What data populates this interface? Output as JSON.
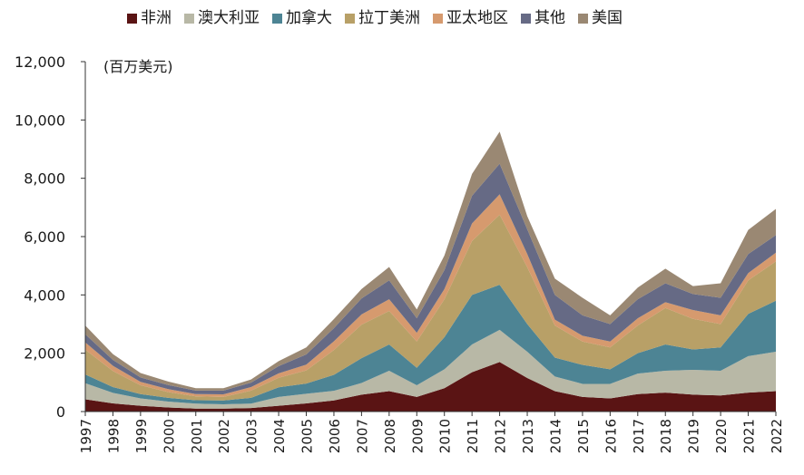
{
  "chart_data": {
    "type": "area",
    "stacked": true,
    "title": "",
    "ylabel": "(百万美元)",
    "xlabel": "",
    "ylim": [
      0,
      12000
    ],
    "yticks": [
      0,
      2000,
      4000,
      6000,
      8000,
      10000,
      12000
    ],
    "ytick_labels": [
      "0",
      "2,000",
      "4,000",
      "6,000",
      "8,000",
      "10,000",
      "12,000"
    ],
    "categories": [
      "1997",
      "1998",
      "1999",
      "2000",
      "2001",
      "2002",
      "2003",
      "2004",
      "2005",
      "2006",
      "2007",
      "2008",
      "2009",
      "2010",
      "2011",
      "2012",
      "2013",
      "2014",
      "2015",
      "2016",
      "2017",
      "2018",
      "2019",
      "2020",
      "2021",
      "2022"
    ],
    "legend_position": "top",
    "series": [
      {
        "name": "非洲",
        "color": "#5a1414",
        "values": [
          420,
          280,
          200,
          140,
          100,
          100,
          120,
          200,
          280,
          380,
          580,
          700,
          500,
          800,
          1350,
          1700,
          1150,
          700,
          500,
          450,
          600,
          650,
          580,
          550,
          650,
          700
        ]
      },
      {
        "name": "澳大利亚",
        "color": "#b8b8a6",
        "values": [
          550,
          360,
          250,
          200,
          170,
          150,
          150,
          300,
          330,
          330,
          400,
          700,
          400,
          650,
          950,
          1100,
          900,
          500,
          450,
          500,
          700,
          750,
          850,
          850,
          1250,
          1350
        ]
      },
      {
        "name": "加拿大",
        "color": "#4d8494",
        "values": [
          300,
          200,
          150,
          130,
          120,
          130,
          200,
          330,
          350,
          550,
          850,
          900,
          600,
          1100,
          1700,
          1550,
          950,
          650,
          650,
          500,
          700,
          900,
          700,
          800,
          1450,
          1750
        ]
      },
      {
        "name": "拉丁美洲",
        "color": "#b8a067",
        "values": [
          850,
          550,
          300,
          200,
          130,
          120,
          250,
          330,
          450,
          850,
          1150,
          1150,
          900,
          1300,
          1850,
          2400,
          1950,
          1100,
          800,
          750,
          950,
          1250,
          1050,
          800,
          1150,
          1350
        ]
      },
      {
        "name": "亚太地区",
        "color": "#d69a6e",
        "values": [
          250,
          180,
          120,
          100,
          80,
          90,
          120,
          150,
          200,
          300,
          350,
          400,
          300,
          350,
          600,
          700,
          450,
          200,
          200,
          200,
          250,
          200,
          300,
          300,
          250,
          300
        ]
      },
      {
        "name": "其他",
        "color": "#666a85",
        "values": [
          280,
          200,
          150,
          140,
          120,
          130,
          150,
          250,
          350,
          450,
          550,
          650,
          500,
          650,
          950,
          1050,
          850,
          850,
          700,
          600,
          650,
          650,
          550,
          600,
          650,
          600
        ]
      },
      {
        "name": "美国",
        "color": "#9a8873",
        "values": [
          300,
          200,
          150,
          120,
          80,
          80,
          110,
          170,
          240,
          310,
          320,
          460,
          300,
          500,
          750,
          1100,
          450,
          560,
          600,
          300,
          400,
          500,
          270,
          500,
          830,
          900
        ]
      }
    ]
  }
}
